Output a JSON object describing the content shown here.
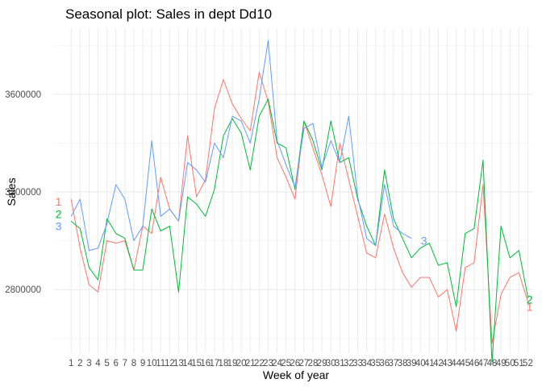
{
  "chart_data": {
    "type": "line",
    "title": "Seasonal plot: Sales in dept Dd10",
    "xlabel": "Week of year",
    "ylabel": "Sales",
    "xlim": [
      -1,
      52.5
    ],
    "ylim": [
      2540000,
      3870000
    ],
    "y_ticks": [
      2800000,
      3200000,
      3600000
    ],
    "y_tick_labels": [
      "2800000",
      "3200000",
      "3600000"
    ],
    "x_ticks": [
      1,
      2,
      3,
      4,
      5,
      6,
      7,
      8,
      9,
      10,
      11,
      12,
      13,
      14,
      15,
      16,
      17,
      18,
      19,
      20,
      21,
      22,
      23,
      24,
      25,
      26,
      27,
      28,
      29,
      30,
      31,
      32,
      33,
      34,
      35,
      36,
      37,
      38,
      39,
      40,
      41,
      42,
      43,
      44,
      45,
      46,
      47,
      48,
      49,
      50,
      51,
      52
    ],
    "x_tick_labels": [
      "1",
      "2",
      "3",
      "4",
      "5",
      "6",
      "7",
      "8",
      "9",
      "10",
      "11",
      "12",
      "13",
      "14",
      "15",
      "16",
      "17",
      "18",
      "19",
      "20",
      "21",
      "22",
      "23",
      "24",
      "25",
      "26",
      "27",
      "28",
      "29",
      "30",
      "31",
      "32",
      "33",
      "34",
      "35",
      "36",
      "37",
      "38",
      "39",
      "40",
      "41",
      "42",
      "43",
      "44",
      "45",
      "46",
      "47",
      "48",
      "49",
      "50",
      "51",
      "52"
    ],
    "grid": true,
    "legend": "none",
    "series": [
      {
        "label": "1",
        "color": "#F8766D",
        "label_start": {
          "x": -0.4,
          "y": 3160000
        },
        "label_end": {
          "x": 52.2,
          "y": 2730000
        },
        "x": [
          1,
          2,
          3,
          4,
          5,
          6,
          7,
          8,
          9,
          10,
          11,
          12,
          13,
          14,
          15,
          16,
          17,
          18,
          19,
          20,
          21,
          22,
          23,
          24,
          25,
          26,
          27,
          28,
          29,
          30,
          31,
          32,
          33,
          34,
          35,
          36,
          37,
          38,
          39,
          40,
          41,
          42,
          43,
          44,
          45,
          46,
          47,
          48,
          49,
          50,
          51,
          52
        ],
        "values": [
          3170000,
          2970000,
          2820000,
          2790000,
          3000000,
          2990000,
          3000000,
          2880000,
          3060000,
          3030000,
          3260000,
          3130000,
          3080000,
          3430000,
          3180000,
          3250000,
          3540000,
          3660000,
          3560000,
          3500000,
          3450000,
          3690000,
          3570000,
          3340000,
          3260000,
          3170000,
          3490000,
          3380000,
          3270000,
          3140000,
          3400000,
          3250000,
          3100000,
          2950000,
          2930000,
          3110000,
          2970000,
          2870000,
          2810000,
          2850000,
          2850000,
          2770000,
          2800000,
          2630000,
          2890000,
          2910000,
          3230000,
          2580000,
          2780000,
          2850000,
          2870000,
          2750000
        ]
      },
      {
        "label": "2",
        "color": "#00BA38",
        "label_start": {
          "x": -0.4,
          "y": 3110000
        },
        "label_end": {
          "x": 52.2,
          "y": 2760000
        },
        "x": [
          1,
          2,
          3,
          4,
          5,
          6,
          7,
          8,
          9,
          10,
          11,
          12,
          13,
          14,
          15,
          16,
          17,
          18,
          19,
          20,
          21,
          22,
          23,
          24,
          25,
          26,
          27,
          28,
          29,
          30,
          31,
          32,
          33,
          34,
          35,
          36,
          37,
          38,
          39,
          40,
          41,
          42,
          43,
          44,
          45,
          46,
          47,
          48,
          49,
          50,
          51,
          52
        ],
        "values": [
          3080000,
          3050000,
          2890000,
          2840000,
          3090000,
          3030000,
          3010000,
          2880000,
          2880000,
          3130000,
          3040000,
          3060000,
          2790000,
          3180000,
          3150000,
          3100000,
          3210000,
          3430000,
          3500000,
          3440000,
          3290000,
          3510000,
          3580000,
          3400000,
          3380000,
          3210000,
          3490000,
          3410000,
          3290000,
          3490000,
          3320000,
          3340000,
          3170000,
          3060000,
          2980000,
          3290000,
          3090000,
          3010000,
          2930000,
          2970000,
          2990000,
          2900000,
          2910000,
          2730000,
          3030000,
          3050000,
          3330000,
          2500000,
          3060000,
          2930000,
          2960000,
          2770000
        ]
      },
      {
        "label": "3",
        "color": "#619CFF",
        "label_start": {
          "x": -0.4,
          "y": 3060000
        },
        "label_end": {
          "x": 40.4,
          "y": 3000000
        },
        "x": [
          1,
          2,
          3,
          4,
          5,
          6,
          7,
          8,
          9,
          10,
          11,
          12,
          13,
          14,
          15,
          16,
          17,
          18,
          19,
          20,
          21,
          22,
          23,
          24,
          25,
          26,
          27,
          28,
          29,
          30,
          31,
          32,
          33,
          34,
          35,
          36,
          37,
          38,
          39
        ],
        "values": [
          3100000,
          3170000,
          2960000,
          2970000,
          3070000,
          3230000,
          3170000,
          3000000,
          3060000,
          3410000,
          3100000,
          3130000,
          3080000,
          3320000,
          3290000,
          3240000,
          3400000,
          3340000,
          3510000,
          3490000,
          3400000,
          3580000,
          3820000,
          3410000,
          3310000,
          3220000,
          3460000,
          3480000,
          3300000,
          3410000,
          3320000,
          3510000,
          3180000,
          3010000,
          2980000,
          3230000,
          3060000,
          3030000,
          3010000
        ]
      }
    ]
  }
}
